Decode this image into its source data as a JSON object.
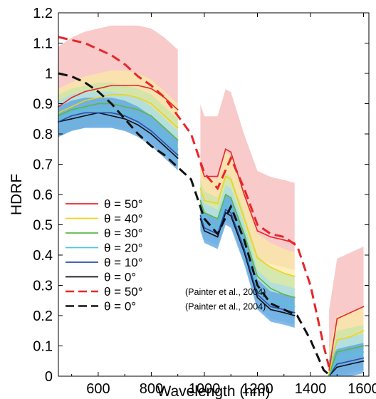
{
  "chart_data": {
    "type": "line",
    "xlabel": "Wavelength (nm)",
    "ylabel": "HDRF",
    "xlim": [
      450,
      1620
    ],
    "ylim": [
      0,
      1.2
    ],
    "xticks": [
      "600",
      "800",
      "1000",
      "1200",
      "1400",
      "1600"
    ],
    "xtick_values": [
      600,
      800,
      1000,
      1200,
      1400,
      1600
    ],
    "yticks": [
      "0",
      "0.1",
      "0.2",
      "0.3",
      "0.4",
      "0.5",
      "0.6",
      "0.7",
      "0.8",
      "0.9",
      "1",
      "1.1",
      "1.2"
    ],
    "ytick_values": [
      0,
      0.1,
      0.2,
      0.3,
      0.4,
      0.5,
      0.6,
      0.7,
      0.8,
      0.9,
      1.0,
      1.1,
      1.2
    ],
    "grid": false,
    "legend_position": "lower-left",
    "gaps": [
      [
        900,
        985
      ],
      [
        1340,
        1470
      ]
    ],
    "x": [
      450,
      500,
      550,
      600,
      650,
      700,
      750,
      800,
      850,
      900,
      985,
      1000,
      1050,
      1080,
      1100,
      1150,
      1200,
      1250,
      1300,
      1340,
      1470,
      1500,
      1550,
      1600
    ],
    "series": [
      {
        "name": "θ = 50°",
        "color": "#e8262b",
        "band_color": "#f6b8b8",
        "style": "solid",
        "values": [
          0.89,
          0.92,
          0.94,
          0.95,
          0.96,
          0.96,
          0.96,
          0.95,
          0.92,
          0.88,
          0.7,
          0.66,
          0.66,
          0.75,
          0.74,
          0.6,
          0.48,
          0.46,
          0.45,
          0.44,
          0.02,
          0.19,
          0.21,
          0.23
        ]
      },
      {
        "name": "θ = 40°",
        "color": "#f1d21a",
        "band_color": "#fbe9a6",
        "style": "solid",
        "values": [
          0.87,
          0.89,
          0.91,
          0.92,
          0.93,
          0.93,
          0.92,
          0.9,
          0.86,
          0.82,
          0.62,
          0.58,
          0.57,
          0.66,
          0.65,
          0.52,
          0.39,
          0.36,
          0.34,
          0.33,
          0.01,
          0.12,
          0.13,
          0.15
        ]
      },
      {
        "name": "θ = 30°",
        "color": "#58b846",
        "band_color": "#c8e6a8",
        "style": "solid",
        "values": [
          0.86,
          0.88,
          0.89,
          0.9,
          0.9,
          0.89,
          0.88,
          0.86,
          0.82,
          0.78,
          0.58,
          0.54,
          0.52,
          0.6,
          0.59,
          0.47,
          0.33,
          0.29,
          0.27,
          0.26,
          0.005,
          0.08,
          0.09,
          0.1
        ]
      },
      {
        "name": "θ = 20°",
        "color": "#4fc8d6",
        "band_color": "#a8dcec",
        "style": "solid",
        "values": [
          0.85,
          0.87,
          0.88,
          0.88,
          0.88,
          0.87,
          0.86,
          0.83,
          0.79,
          0.75,
          0.55,
          0.51,
          0.49,
          0.57,
          0.56,
          0.44,
          0.29,
          0.25,
          0.24,
          0.23,
          0.003,
          0.06,
          0.07,
          0.08
        ]
      },
      {
        "name": "θ = 10°",
        "color": "#2a4fa8",
        "band_color": "#5aa2e0",
        "style": "solid",
        "values": [
          0.84,
          0.86,
          0.87,
          0.87,
          0.87,
          0.86,
          0.84,
          0.81,
          0.77,
          0.73,
          0.53,
          0.49,
          0.47,
          0.55,
          0.54,
          0.42,
          0.27,
          0.23,
          0.22,
          0.21,
          0.002,
          0.04,
          0.05,
          0.06
        ]
      },
      {
        "name": "θ = 0°",
        "color": "#111111",
        "band_color": "",
        "style": "solid",
        "values": [
          0.84,
          0.85,
          0.86,
          0.87,
          0.86,
          0.85,
          0.83,
          0.8,
          0.76,
          0.72,
          0.52,
          0.48,
          0.46,
          0.54,
          0.53,
          0.41,
          0.26,
          0.22,
          0.21,
          0.2,
          0.001,
          0.03,
          0.04,
          0.05
        ]
      }
    ],
    "reference_series": [
      {
        "name": "θ = 50° (Painter et al., 2004)",
        "color": "#e8262b",
        "style": "dashed",
        "x": [
          450,
          500,
          550,
          600,
          650,
          700,
          750,
          800,
          850,
          900,
          950,
          1000,
          1050,
          1100,
          1150,
          1200,
          1250,
          1300,
          1350,
          1400,
          1450,
          1470
        ],
        "values": [
          1.12,
          1.11,
          1.1,
          1.08,
          1.06,
          1.03,
          0.99,
          0.96,
          0.92,
          0.86,
          0.8,
          0.67,
          0.62,
          0.72,
          0.62,
          0.5,
          0.47,
          0.46,
          0.43,
          0.3,
          0.1,
          0.03
        ]
      },
      {
        "name": "θ = 0° (Painter et al., 2004)",
        "color": "#111111",
        "style": "dashed",
        "x": [
          450,
          500,
          550,
          600,
          650,
          700,
          750,
          800,
          850,
          900,
          950,
          1000,
          1050,
          1100,
          1150,
          1200,
          1250,
          1300,
          1350,
          1400,
          1450,
          1470
        ],
        "values": [
          1.0,
          0.99,
          0.97,
          0.94,
          0.9,
          0.85,
          0.8,
          0.76,
          0.73,
          0.69,
          0.65,
          0.52,
          0.47,
          0.56,
          0.45,
          0.3,
          0.24,
          0.22,
          0.2,
          0.12,
          0.02,
          0.005
        ]
      }
    ],
    "legend": [
      {
        "label": "θ = 50°",
        "color": "#e8262b",
        "style": "solid"
      },
      {
        "label": "θ = 40°",
        "color": "#f1d21a",
        "style": "solid"
      },
      {
        "label": "θ = 30°",
        "color": "#58b846",
        "style": "solid"
      },
      {
        "label": "θ = 20°",
        "color": "#4fc8d6",
        "style": "solid"
      },
      {
        "label": "θ = 10°",
        "color": "#2a4fa8",
        "style": "solid"
      },
      {
        "label": "θ = 0°",
        "color": "#111111",
        "style": "solid"
      },
      {
        "label": "θ = 50°",
        "note": "(Painter et al., 2004)",
        "color": "#e8262b",
        "style": "dashed"
      },
      {
        "label": "θ = 0°",
        "note": "(Painter et al., 2004)",
        "color": "#111111",
        "style": "dashed"
      }
    ]
  }
}
